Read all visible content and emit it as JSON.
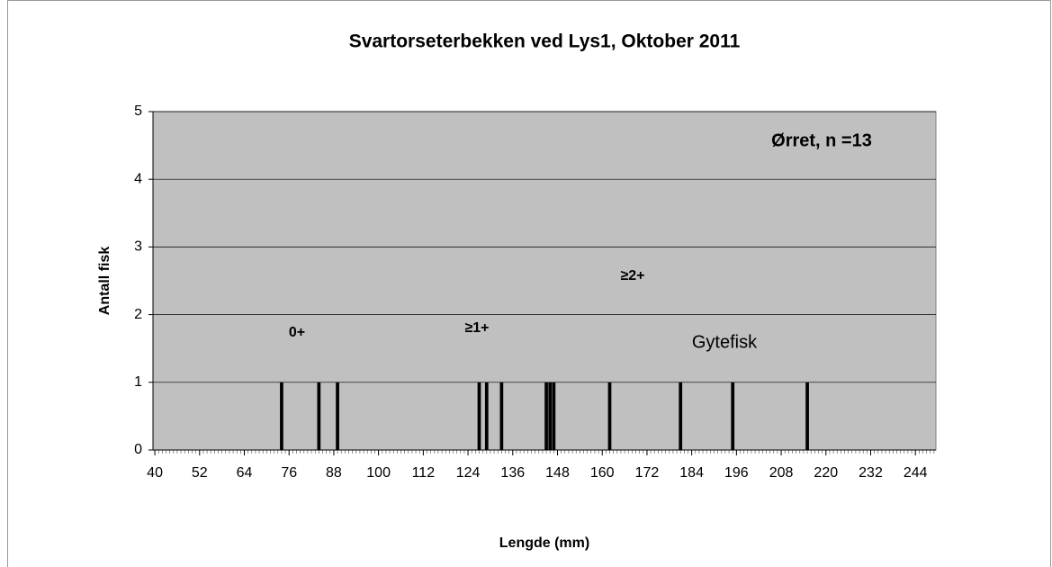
{
  "chart_data": {
    "type": "bar",
    "title": "Svartorseterbekken ved Lys1, Oktober 2011",
    "x_label": "Lengde (mm)",
    "y_label": "Antall fisk",
    "annotations": [
      "0+",
      "≥1+",
      "≥2+",
      "Gytefisk",
      "Ørret, n =13"
    ],
    "x": [
      74,
      84,
      89,
      127,
      129,
      133,
      145,
      146,
      147,
      162,
      181,
      195,
      215
    ],
    "values": [
      1,
      1,
      1,
      1,
      1,
      1,
      1,
      1,
      1,
      1,
      1,
      1,
      1
    ],
    "color": "#000000",
    "background": "#c0c0c0",
    "xlim": [
      39.5,
      249.5
    ],
    "xticks": [
      40,
      52,
      64,
      76,
      88,
      100,
      112,
      124,
      136,
      148,
      160,
      172,
      184,
      196,
      208,
      220,
      232,
      244
    ],
    "ylim": [
      0,
      5
    ],
    "yticks": [
      0,
      1,
      2,
      3,
      4,
      5
    ],
    "grid": true
  }
}
